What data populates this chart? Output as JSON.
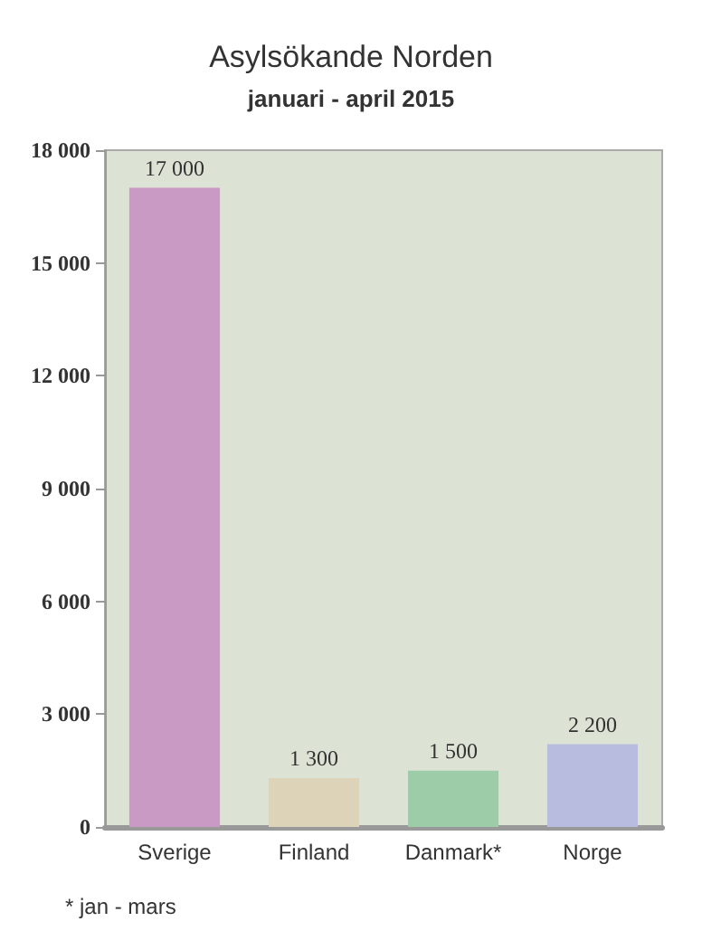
{
  "chart_data": {
    "type": "bar",
    "title": "Asylsökande Norden",
    "subtitle": "januari - april 2015",
    "categories": [
      "Sverige",
      "Finland",
      "Danmark*",
      "Norge"
    ],
    "values": [
      17000,
      1300,
      1500,
      2200
    ],
    "colors": [
      "#c89ac4",
      "#ddd3b8",
      "#9dcca8",
      "#b8bde0"
    ],
    "value_labels": [
      "17 000",
      "1 300",
      "1 500",
      "2 200"
    ],
    "ylim": [
      0,
      18000
    ],
    "yticks": [
      {
        "value": 0,
        "label": "0"
      },
      {
        "value": 3000,
        "label": "3 000"
      },
      {
        "value": 6000,
        "label": "6 000"
      },
      {
        "value": 9000,
        "label": "9 000"
      },
      {
        "value": 12000,
        "label": "12 000"
      },
      {
        "value": 15000,
        "label": "15 000"
      },
      {
        "value": 18000,
        "label": "18 000"
      }
    ],
    "grid": false,
    "annotations": [
      "* jan - mars"
    ]
  }
}
